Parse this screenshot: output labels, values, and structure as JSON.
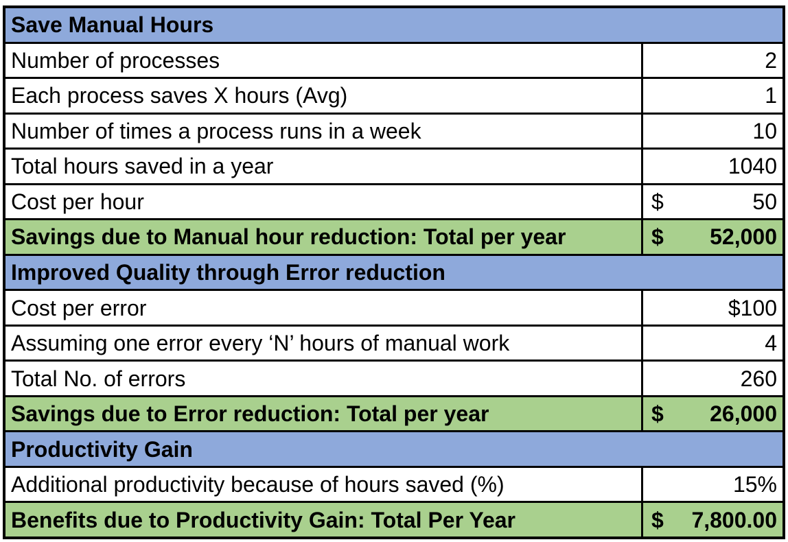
{
  "colors": {
    "section_header_bg": "#8ea9db",
    "total_row_bg": "#a9d08e",
    "data_row_bg": "#ffffff",
    "grid_border": "#000000",
    "text": "#000000"
  },
  "rows": [
    {
      "type": "section",
      "label": "Save Manual Hours"
    },
    {
      "type": "item",
      "label": "Number of processes",
      "value": "2"
    },
    {
      "type": "item",
      "label": "Each process saves X hours (Avg)",
      "value": "1"
    },
    {
      "type": "item",
      "label": "Number of times a process runs in a week",
      "value": "10"
    },
    {
      "type": "item",
      "label": "Total hours saved in a year",
      "value": "1040"
    },
    {
      "type": "item_accounting",
      "label": "Cost per hour",
      "currency": "$",
      "value": "50"
    },
    {
      "type": "total",
      "label": "Savings due to Manual hour reduction: Total per year",
      "currency": "$",
      "value": "52,000"
    },
    {
      "type": "section",
      "label": "Improved Quality through Error reduction"
    },
    {
      "type": "item",
      "label": "Cost per error",
      "value": "$100"
    },
    {
      "type": "item",
      "label": "Assuming one error every ‘N’ hours of manual work",
      "value": "4"
    },
    {
      "type": "item",
      "label": "Total No. of errors",
      "value": "260"
    },
    {
      "type": "total",
      "label": "Savings due to Error reduction: Total per year",
      "currency": "$",
      "value": "26,000"
    },
    {
      "type": "section",
      "label": "Productivity Gain"
    },
    {
      "type": "item",
      "label": "Additional productivity because of hours saved (%)",
      "value": "15%"
    },
    {
      "type": "total",
      "label": "Benefits due to Productivity Gain: Total Per Year",
      "currency": "$",
      "value": "7,800.00"
    }
  ]
}
